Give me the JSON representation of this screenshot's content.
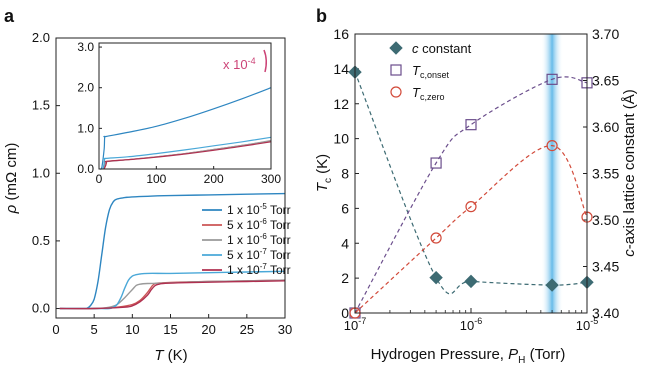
{
  "panels": {
    "a": {
      "label": "a"
    },
    "b": {
      "label": "b"
    }
  },
  "chart_data": [
    {
      "panel": "a",
      "type": "line",
      "xlabel": "T (K)",
      "xlabel_parts": {
        "var": "T",
        "unit": " (K)"
      },
      "ylabel": "ρ (mΩ cm)",
      "ylabel_parts": {
        "var": "ρ",
        "unit": " (mΩ cm)"
      },
      "xlim": [
        0,
        30
      ],
      "ylim": [
        -0.07,
        2.0
      ],
      "xticks": [
        "0",
        "5",
        "10",
        "15",
        "20",
        "25",
        "30"
      ],
      "yticks": [
        "0.0",
        "0.5",
        "1.0",
        "1.5",
        "2.0"
      ],
      "legend_position": "lower-right",
      "series": [
        {
          "name": "1 x 10-5 Torr",
          "mantissa": "1 x 10",
          "exponent": "-5",
          "unit": " Torr",
          "color": "#2e86c1",
          "x": [
            4.0,
            4.5,
            5.0,
            5.5,
            6.0,
            6.5,
            7.0,
            7.5,
            8.0,
            9.0,
            10.0,
            12.0,
            15.0,
            20.0,
            25.0,
            30.0
          ],
          "y": [
            0.0,
            0.02,
            0.07,
            0.2,
            0.4,
            0.6,
            0.73,
            0.79,
            0.81,
            0.82,
            0.825,
            0.83,
            0.835,
            0.84,
            0.845,
            0.85
          ]
        },
        {
          "name": "5 x 10-6 Torr",
          "mantissa": "5 x 10",
          "exponent": "-6",
          "unit": " Torr",
          "color": "#cc5555",
          "x": [
            0.5,
            5.0,
            8.0,
            10.0,
            11.0,
            12.0,
            12.5,
            13.0,
            14.0,
            16.0,
            20.0,
            25.0,
            30.0
          ],
          "y": [
            0.0,
            0.0,
            0.01,
            0.03,
            0.06,
            0.12,
            0.16,
            0.185,
            0.19,
            0.195,
            0.2,
            0.205,
            0.21
          ]
        },
        {
          "name": "1 x 10-6 Torr",
          "mantissa": "1 x 10",
          "exponent": "-6",
          "unit": " Torr",
          "color": "#9a9a9a",
          "x": [
            0.5,
            5.0,
            7.0,
            8.0,
            9.0,
            10.0,
            10.5,
            11.0,
            12.0,
            15.0,
            20.0,
            25.0,
            30.0
          ],
          "y": [
            0.0,
            0.0,
            0.01,
            0.03,
            0.08,
            0.14,
            0.17,
            0.18,
            0.185,
            0.19,
            0.2,
            0.205,
            0.21
          ]
        },
        {
          "name": "5 x 10-7 Torr",
          "mantissa": "5 x 10",
          "exponent": "-7",
          "unit": " Torr",
          "color": "#4aa8d8",
          "x": [
            0.5,
            5.0,
            7.0,
            7.5,
            8.0,
            8.5,
            9.0,
            9.5,
            10.0,
            10.5,
            11.0,
            12.0,
            15.0,
            20.0,
            25.0,
            30.0
          ],
          "y": [
            0.0,
            0.0,
            0.0,
            0.01,
            0.03,
            0.08,
            0.15,
            0.21,
            0.24,
            0.25,
            0.255,
            0.26,
            0.26,
            0.265,
            0.27,
            0.275
          ]
        },
        {
          "name": "1 x 10-7 Torr",
          "mantissa": "1 x 10",
          "exponent": "-7",
          "unit": " Torr",
          "color": "#b03050",
          "x": [
            0.5,
            5.0,
            9.0,
            10.0,
            11.0,
            12.0,
            12.5,
            13.0,
            13.5,
            14.0,
            16.0,
            20.0,
            25.0,
            30.0
          ],
          "y": [
            0.0,
            0.0,
            0.01,
            0.02,
            0.05,
            0.1,
            0.14,
            0.17,
            0.18,
            0.185,
            0.19,
            0.195,
            0.2,
            0.205
          ]
        }
      ]
    },
    {
      "panel": "a-inset",
      "type": "line",
      "xlim": [
        0,
        300
      ],
      "ylim": [
        0,
        3.1
      ],
      "xticks": [
        "0",
        "100",
        "200",
        "300"
      ],
      "yticks": [
        "0.0",
        "1.0",
        "2.0",
        "3.0"
      ],
      "scale_note": "x 10",
      "scale_exponent": "-4",
      "series": [
        {
          "name": "1 x 10-5 Torr",
          "color": "#2e86c1",
          "x": [
            2,
            5,
            9,
            10,
            12,
            50,
            100,
            150,
            200,
            250,
            300
          ],
          "y": [
            0.0,
            0.05,
            0.5,
            0.78,
            0.8,
            0.9,
            1.05,
            1.25,
            1.48,
            1.73,
            2.0
          ]
        },
        {
          "name": "5 x 10-6 Torr",
          "color": "#cc5555",
          "x": [
            8,
            11,
            13,
            14,
            50,
            100,
            150,
            200,
            250,
            300
          ],
          "y": [
            0.0,
            0.07,
            0.16,
            0.19,
            0.23,
            0.3,
            0.38,
            0.48,
            0.58,
            0.69
          ]
        },
        {
          "name": "1 x 10-6 Torr",
          "color": "#9a9a9a",
          "x": [
            8,
            10,
            11,
            12,
            50,
            100,
            150,
            200,
            250,
            300
          ],
          "y": [
            0.0,
            0.1,
            0.17,
            0.18,
            0.23,
            0.3,
            0.38,
            0.48,
            0.58,
            0.7
          ]
        },
        {
          "name": "5 x 10-7 Torr",
          "color": "#4aa8d8",
          "x": [
            7,
            9,
            10,
            11,
            50,
            100,
            150,
            200,
            250,
            300
          ],
          "y": [
            0.0,
            0.15,
            0.24,
            0.26,
            0.3,
            0.38,
            0.47,
            0.57,
            0.67,
            0.78
          ]
        },
        {
          "name": "1 x 10-7 Torr",
          "color": "#b03050",
          "x": [
            9,
            12,
            13,
            14,
            50,
            100,
            150,
            200,
            250,
            300
          ],
          "y": [
            0.0,
            0.1,
            0.17,
            0.19,
            0.23,
            0.29,
            0.37,
            0.46,
            0.56,
            0.67
          ]
        }
      ]
    },
    {
      "panel": "b",
      "type": "scatter",
      "xlabel": "Hydrogen Pressure, P_H (Torr)",
      "xlabel_parts": {
        "prefix": "Hydrogen Pressure, ",
        "var": "P",
        "sub": "H",
        "suffix": " (Torr)"
      },
      "ylabel_left": "T_c (K)",
      "ylabel_left_parts": {
        "var": "T",
        "sub": "c",
        "unit": " (K)"
      },
      "ylabel_right": "c-axis lattice constant (Å)",
      "ylabel_right_parts": {
        "var": "c",
        "rest": "-axis lattice constant (Å)"
      },
      "xscale": "log",
      "xlim": [
        1e-07,
        1e-05
      ],
      "xticks": [
        {
          "value": 1e-07,
          "mantissa": "10",
          "exponent": "-7"
        },
        {
          "value": 1e-06,
          "mantissa": "10",
          "exponent": "-6"
        },
        {
          "value": 1e-05,
          "mantissa": "10",
          "exponent": "-5"
        }
      ],
      "ylim_left": [
        0,
        16
      ],
      "yticks_left": [
        "0",
        "2",
        "4",
        "6",
        "8",
        "10",
        "12",
        "14",
        "16"
      ],
      "ylim_right": [
        3.4,
        3.7
      ],
      "yticks_right": [
        "3.40",
        "3.45",
        "3.50",
        "3.55",
        "3.60",
        "3.65",
        "3.70"
      ],
      "highlight_x": 5e-06,
      "legend_position": "top-center",
      "series": [
        {
          "name": "c constant",
          "name_parts": {
            "var": "c",
            "rest": " constant"
          },
          "axis": "right",
          "marker": "diamond",
          "color": "#3d6b73",
          "fill": "#3d6b73",
          "x": [
            1e-07,
            5e-07,
            1e-06,
            5e-06,
            1e-05
          ],
          "y": [
            3.659,
            3.438,
            3.434,
            3.43,
            3.433
          ]
        },
        {
          "name": "T_c,onset",
          "name_parts": {
            "var": "T",
            "sub": "c,onset"
          },
          "axis": "left",
          "marker": "square",
          "color": "#6b4e8c",
          "fill": "none",
          "x": [
            1e-07,
            5e-07,
            1e-06,
            5e-06,
            1e-05
          ],
          "y": [
            0.0,
            8.6,
            10.8,
            13.4,
            13.2
          ]
        },
        {
          "name": "T_c,zero",
          "name_parts": {
            "var": "T",
            "sub": "c,zero"
          },
          "axis": "left",
          "marker": "circle",
          "color": "#d24a3a",
          "fill": "none",
          "x": [
            1e-07,
            5e-07,
            1e-06,
            5e-06,
            1e-05
          ],
          "y": [
            0.0,
            4.3,
            6.1,
            9.6,
            5.5
          ]
        }
      ]
    }
  ]
}
